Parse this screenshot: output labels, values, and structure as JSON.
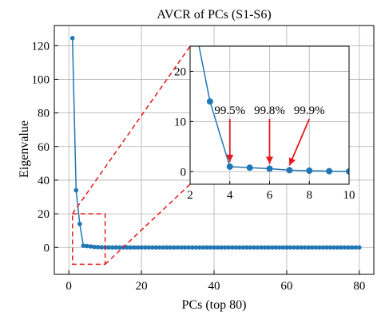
{
  "chart_data": {
    "type": "line",
    "title": "AVCR of PCs (S1-S6)",
    "xlabel": "PCs (top 80)",
    "ylabel": "Eigenvalue",
    "xlim": [
      -4,
      84
    ],
    "ylim": [
      -16,
      132
    ],
    "xticks": [
      0,
      20,
      40,
      60,
      80
    ],
    "yticks": [
      0,
      20,
      40,
      60,
      80,
      100,
      120
    ],
    "grid": true,
    "line_color": "#1f77b4",
    "marker_color": "#1f77b4",
    "zoom_box": {
      "x_range": [
        1,
        10
      ],
      "y_range": [
        -10,
        20
      ],
      "color": "#e31a1c"
    },
    "series": [
      {
        "values": [
          [
            1,
            124.5
          ],
          [
            2,
            34.0
          ],
          [
            3,
            14.0
          ],
          [
            4,
            1.0
          ],
          [
            5,
            0.8
          ],
          [
            6,
            0.6
          ],
          [
            7,
            0.3
          ],
          [
            8,
            0.2
          ],
          [
            9,
            0.1
          ],
          [
            10,
            0.05
          ],
          [
            11,
            0.03
          ],
          [
            12,
            0.02
          ],
          [
            13,
            0.02
          ],
          [
            14,
            0.01
          ],
          [
            15,
            0.01
          ],
          [
            16,
            0.01
          ],
          [
            17,
            0.01
          ],
          [
            18,
            0.01
          ],
          [
            19,
            0.01
          ],
          [
            20,
            0.01
          ],
          [
            21,
            0.01
          ],
          [
            22,
            0.01
          ],
          [
            23,
            0.01
          ],
          [
            24,
            0.01
          ],
          [
            25,
            0.01
          ],
          [
            26,
            0.01
          ],
          [
            27,
            0.01
          ],
          [
            28,
            0.01
          ],
          [
            29,
            0.01
          ],
          [
            30,
            0.01
          ],
          [
            31,
            0.01
          ],
          [
            32,
            0.01
          ],
          [
            33,
            0.01
          ],
          [
            34,
            0.01
          ],
          [
            35,
            0.01
          ],
          [
            36,
            0.01
          ],
          [
            37,
            0.01
          ],
          [
            38,
            0.01
          ],
          [
            39,
            0.01
          ],
          [
            40,
            0.01
          ],
          [
            41,
            0.01
          ],
          [
            42,
            0.01
          ],
          [
            43,
            0.01
          ],
          [
            44,
            0.01
          ],
          [
            45,
            0.01
          ],
          [
            46,
            0.01
          ],
          [
            47,
            0.01
          ],
          [
            48,
            0.01
          ],
          [
            49,
            0.01
          ],
          [
            50,
            0.01
          ],
          [
            51,
            0.01
          ],
          [
            52,
            0.01
          ],
          [
            53,
            0.01
          ],
          [
            54,
            0.01
          ],
          [
            55,
            0.01
          ],
          [
            56,
            0.01
          ],
          [
            57,
            0.01
          ],
          [
            58,
            0.01
          ],
          [
            59,
            0.01
          ],
          [
            60,
            0.01
          ],
          [
            61,
            0.01
          ],
          [
            62,
            0.01
          ],
          [
            63,
            0.01
          ],
          [
            64,
            0.01
          ],
          [
            65,
            0.01
          ],
          [
            66,
            0.01
          ],
          [
            67,
            0.01
          ],
          [
            68,
            0.01
          ],
          [
            69,
            0.01
          ],
          [
            70,
            0.01
          ],
          [
            71,
            0.01
          ],
          [
            72,
            0.01
          ],
          [
            73,
            0.01
          ],
          [
            74,
            0.01
          ],
          [
            75,
            0.01
          ],
          [
            76,
            0.01
          ],
          [
            77,
            0.01
          ],
          [
            78,
            0.01
          ],
          [
            79,
            0.01
          ],
          [
            80,
            0.01
          ]
        ]
      }
    ],
    "inset": {
      "xlim": [
        2,
        10
      ],
      "ylim": [
        -2.5,
        25
      ],
      "xticks": [
        2,
        4,
        6,
        8,
        10
      ],
      "yticks": [
        0,
        10,
        20
      ],
      "grid": true,
      "annotations": [
        {
          "text": "99.5%",
          "x": 4,
          "y": 1.0
        },
        {
          "text": "99.8%",
          "x": 6,
          "y": 0.6
        },
        {
          "text": "99.9%",
          "x": 7,
          "y": 0.3
        }
      ],
      "arrow_color": "#e31a1c"
    }
  }
}
